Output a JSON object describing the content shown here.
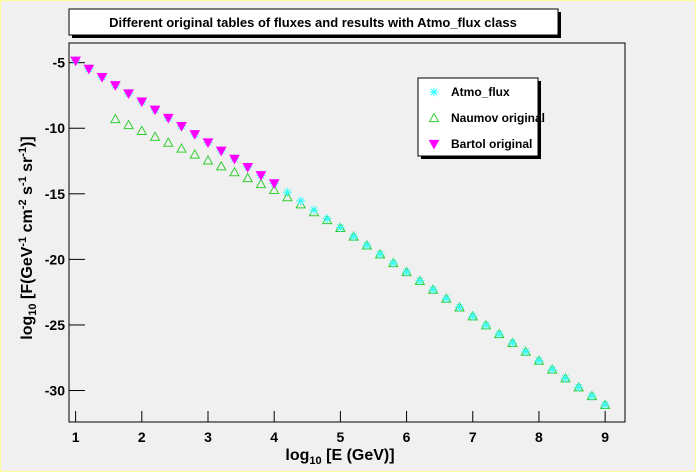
{
  "chart_data": {
    "type": "scatter",
    "title": "Different original tables of fluxes and results with Atmo_flux class",
    "x_label": [
      "log",
      "10",
      " [E (GeV)]"
    ],
    "y_label": [
      "log",
      "10",
      " [F(GeV",
      "-1",
      " cm",
      "-2",
      " s",
      "-1",
      " sr",
      "-1",
      ")]"
    ],
    "xlim": [
      0.9,
      9.3
    ],
    "ylim": [
      -32.4,
      -3.5
    ],
    "xticks": [
      1,
      2,
      3,
      4,
      5,
      6,
      7,
      8,
      9
    ],
    "yticks": [
      -5,
      -10,
      -15,
      -20,
      -25,
      -30
    ],
    "legend": "top-right",
    "series": [
      {
        "name": "Naumov original",
        "color": "#33cc33",
        "marker": "open-triangle-up",
        "x": [
          1.6,
          1.8,
          2.0,
          2.2,
          2.4,
          2.6,
          2.8,
          3.0,
          3.2,
          3.4,
          3.6,
          3.8,
          4.0,
          4.2,
          4.4,
          4.6,
          4.8,
          5.0,
          5.2,
          5.4,
          5.6,
          5.8,
          6.0,
          6.2,
          6.4,
          6.6,
          6.8,
          7.0,
          7.2,
          7.4,
          7.6,
          7.8,
          8.0,
          8.2,
          8.4,
          8.6,
          8.8,
          9.0
        ],
        "values": [
          -9.3,
          -9.75,
          -10.2,
          -10.65,
          -11.1,
          -11.55,
          -12.0,
          -12.45,
          -12.9,
          -13.35,
          -13.8,
          -14.25,
          -14.7,
          -15.25,
          -15.8,
          -16.4,
          -17.0,
          -17.6,
          -18.26,
          -18.93,
          -19.61,
          -20.28,
          -20.96,
          -21.64,
          -22.31,
          -22.99,
          -23.66,
          -24.34,
          -25.02,
          -25.69,
          -26.37,
          -27.04,
          -27.72,
          -28.4,
          -29.07,
          -29.75,
          -30.42,
          -31.1
        ]
      },
      {
        "name": "Atmo_flux",
        "color": "#33ffff",
        "marker": "star",
        "x": [
          1.0,
          1.2,
          1.4,
          1.6,
          1.8,
          2.0,
          2.2,
          2.4,
          2.6,
          2.8,
          3.0,
          3.2,
          3.4,
          3.6,
          3.8,
          4.0,
          4.2,
          4.4,
          4.6,
          4.8,
          5.0,
          5.2,
          5.4,
          5.6,
          5.8,
          6.0,
          6.2,
          6.4,
          6.6,
          6.8,
          7.0,
          7.2,
          7.4,
          7.6,
          7.8,
          8.0,
          8.2,
          8.4,
          8.6,
          8.8,
          9.0
        ],
        "values": [
          -4.85,
          -5.47,
          -6.1,
          -6.72,
          -7.35,
          -7.97,
          -8.59,
          -9.22,
          -9.84,
          -10.46,
          -11.09,
          -11.71,
          -12.33,
          -12.96,
          -13.58,
          -14.2,
          -14.88,
          -15.55,
          -16.23,
          -16.9,
          -17.58,
          -18.26,
          -18.93,
          -19.61,
          -20.28,
          -20.96,
          -21.64,
          -22.31,
          -22.99,
          -23.66,
          -24.34,
          -25.02,
          -25.69,
          -26.37,
          -27.04,
          -27.72,
          -28.4,
          -29.07,
          -29.75,
          -30.42,
          -31.1
        ]
      },
      {
        "name": "Bartol original",
        "color": "#ff00ff",
        "marker": "filled-triangle-down",
        "x": [
          1.0,
          1.2,
          1.4,
          1.6,
          1.8,
          2.0,
          2.2,
          2.4,
          2.6,
          2.8,
          3.0,
          3.2,
          3.4,
          3.6,
          3.8,
          4.0
        ],
        "values": [
          -4.85,
          -5.47,
          -6.1,
          -6.72,
          -7.35,
          -7.97,
          -8.59,
          -9.22,
          -9.84,
          -10.46,
          -11.09,
          -11.71,
          -12.33,
          -12.96,
          -13.58,
          -14.2
        ]
      }
    ]
  }
}
